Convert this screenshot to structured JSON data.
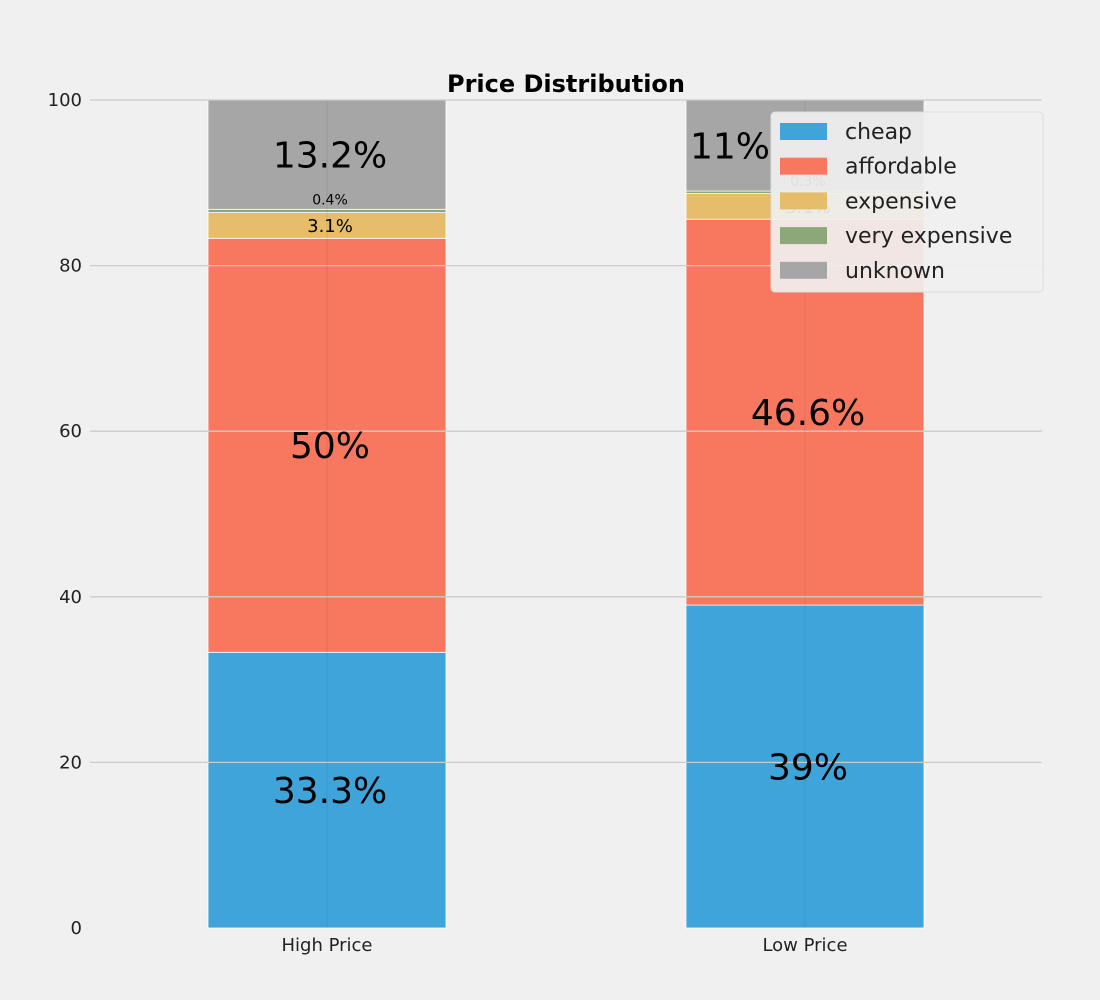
{
  "chart_data": {
    "type": "bar",
    "stacked": true,
    "title": "Price Distribution",
    "xlabel": "",
    "ylabel": "",
    "categories": [
      "High Price",
      "Low Price"
    ],
    "ylim": [
      0,
      100
    ],
    "yticks": [
      "0",
      "20",
      "40",
      "60",
      "80",
      "100"
    ],
    "grid": true,
    "legend_position": "top-right",
    "series": [
      {
        "name": "cheap",
        "color": "#3fa4d9",
        "values": [
          33.3,
          39.0
        ],
        "labels": [
          "33.3%",
          "39%"
        ]
      },
      {
        "name": "affordable",
        "color": "#f7785f",
        "values": [
          50.0,
          46.6
        ],
        "labels": [
          "50%",
          "46.6%"
        ]
      },
      {
        "name": "expensive",
        "color": "#e6be6b",
        "values": [
          3.1,
          3.1
        ],
        "labels": [
          "3.1%",
          "3.1%"
        ]
      },
      {
        "name": "very expensive",
        "color": "#8ca878",
        "values": [
          0.4,
          0.3
        ],
        "labels": [
          "0.4%",
          "0.3%"
        ]
      },
      {
        "name": "unknown",
        "color": "#a6a6a6",
        "values": [
          13.2,
          11.0
        ],
        "labels": [
          "13.2%",
          "11%"
        ]
      }
    ]
  }
}
